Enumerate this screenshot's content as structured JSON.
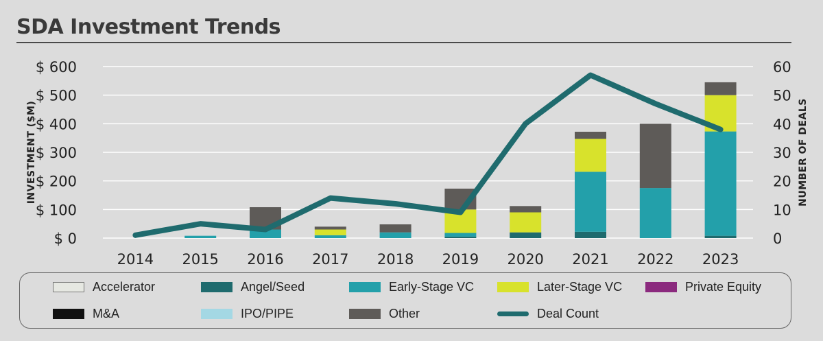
{
  "title": "SDA Investment Trends",
  "chart_data": {
    "type": "bar",
    "stacked": true,
    "categories": [
      "2014",
      "2015",
      "2016",
      "2017",
      "2018",
      "2019",
      "2020",
      "2021",
      "2022",
      "2023"
    ],
    "y_left": {
      "label": "INVESTMENT ($M)",
      "ylim": [
        0,
        600
      ],
      "ticks": [
        0,
        100,
        200,
        300,
        400,
        500,
        600
      ],
      "tick_labels": [
        "$ 0",
        "$ 100",
        "$ 200",
        "$ 300",
        "$ 400",
        "$ 500",
        "$ 600"
      ]
    },
    "y_right": {
      "label": "NUMBER OF DEALS",
      "ylim": [
        0,
        60
      ],
      "ticks": [
        0,
        10,
        20,
        30,
        40,
        50,
        60
      ],
      "tick_labels": [
        "0",
        "10",
        "20",
        "30",
        "40",
        "50",
        "60"
      ]
    },
    "grid": true,
    "legend_position": "bottom",
    "series": [
      {
        "name": "Accelerator",
        "color": "#e6e8e2",
        "values": [
          0,
          0,
          0,
          0,
          0,
          0,
          0,
          0,
          0,
          0
        ]
      },
      {
        "name": "Angel/Seed",
        "color": "#1f6b6e",
        "values": [
          0,
          0,
          0,
          0,
          0,
          5,
          20,
          22,
          0,
          8
        ]
      },
      {
        "name": "Early-Stage VC",
        "color": "#23a0aa",
        "values": [
          0,
          8,
          30,
          10,
          20,
          13,
          0,
          210,
          175,
          365
        ]
      },
      {
        "name": "Later-Stage VC",
        "color": "#d8e22c",
        "values": [
          0,
          0,
          0,
          20,
          0,
          82,
          70,
          115,
          0,
          127
        ]
      },
      {
        "name": "Private Equity",
        "color": "#8b2a7e",
        "values": [
          0,
          0,
          0,
          0,
          0,
          0,
          0,
          0,
          0,
          0
        ]
      },
      {
        "name": "M&A",
        "color": "#111111",
        "values": [
          0,
          0,
          0,
          0,
          0,
          0,
          0,
          0,
          0,
          0
        ]
      },
      {
        "name": "IPO/PIPE",
        "color": "#a4d8e4",
        "values": [
          0,
          0,
          0,
          0,
          0,
          0,
          0,
          0,
          0,
          0
        ]
      },
      {
        "name": "Other",
        "color": "#5e5b58",
        "values": [
          0,
          0,
          78,
          10,
          28,
          73,
          22,
          25,
          225,
          45
        ]
      }
    ],
    "line_series": {
      "name": "Deal Count",
      "color": "#1f6b6e",
      "axis": "right",
      "values": [
        1,
        5,
        3,
        14,
        12,
        9,
        40,
        57,
        47,
        38
      ]
    }
  },
  "legend": [
    {
      "label": "Accelerator",
      "color": "#e6e8e2",
      "kind": "box"
    },
    {
      "label": "Angel/Seed",
      "color": "#1f6b6e",
      "kind": "box"
    },
    {
      "label": "Early-Stage VC",
      "color": "#23a0aa",
      "kind": "box"
    },
    {
      "label": "Later-Stage VC",
      "color": "#d8e22c",
      "kind": "box"
    },
    {
      "label": "Private Equity",
      "color": "#8b2a7e",
      "kind": "box"
    },
    {
      "label": "M&A",
      "color": "#111111",
      "kind": "box"
    },
    {
      "label": "IPO/PIPE",
      "color": "#a4d8e4",
      "kind": "box"
    },
    {
      "label": "Other",
      "color": "#5e5b58",
      "kind": "box"
    },
    {
      "label": "Deal Count",
      "color": "#1f6b6e",
      "kind": "line"
    }
  ]
}
